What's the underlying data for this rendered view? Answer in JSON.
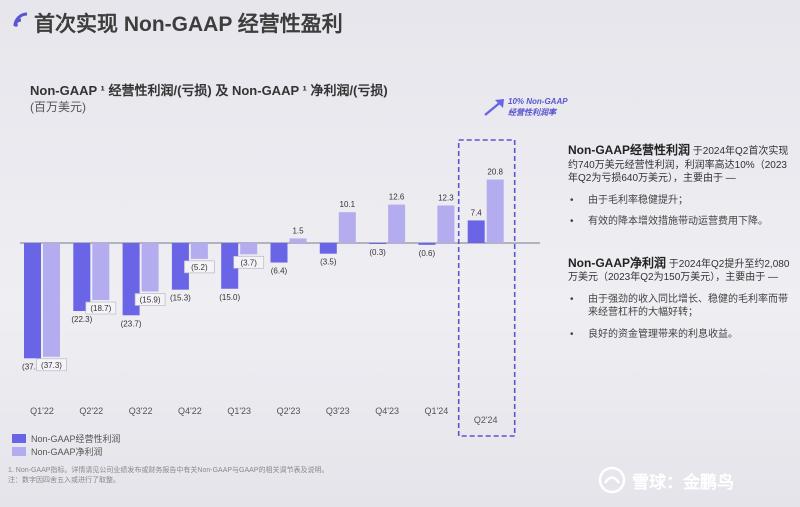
{
  "slide_title": "首次实现 Non-GAAP 经营性盈利",
  "chart_data": {
    "type": "bar",
    "title": "Non-GAAP ¹ 经营性利润/(亏损) 及 Non-GAAP ¹ 净利润/(亏损)",
    "subtitle": "(百万美元)",
    "categories": [
      "Q1'22",
      "Q2'22",
      "Q3'22",
      "Q4'22",
      "Q1'23",
      "Q2'23",
      "Q3'23",
      "Q4'23",
      "Q1'24",
      "Q2'24"
    ],
    "series": [
      {
        "name": "Non-GAAP经营性利润",
        "color": "#6a64e6",
        "values": [
          -37.8,
          -22.3,
          -23.7,
          -15.3,
          -15.0,
          -6.4,
          -3.5,
          -0.3,
          -0.6,
          7.4
        ],
        "labels": [
          "(37.8)",
          "(22.3)",
          "(23.7)",
          "(15.3)",
          "(15.0)",
          "(6.4)",
          "(3.5)",
          "(0.3)",
          "(0.6)",
          "7.4"
        ]
      },
      {
        "name": "Non-GAAP净利润",
        "color": "#b3adf0",
        "values": [
          -37.3,
          -18.7,
          -15.9,
          -5.2,
          -3.7,
          1.5,
          10.1,
          12.6,
          12.3,
          20.8
        ],
        "labels": [
          "(37.3)",
          "(18.7)",
          "(15.9)",
          "(5.2)",
          "(3.7)",
          "1.5",
          "10.1",
          "12.6",
          "12.3",
          "20.8"
        ]
      }
    ],
    "ylim": [
      -40,
      25
    ],
    "grid": false,
    "legend": "bottom-left",
    "highlight_category": "Q2'24",
    "callout": [
      "10% Non-GAAP",
      "经营性利润率"
    ]
  },
  "legend_items": [
    "Non-GAAP经营性利润",
    "Non-GAAP净利润"
  ],
  "footnotes": [
    "1. Non-GAAP指标。详情请见公司业绩发布或财务报告中有关Non-GAAP与GAAP的相关调节表及说明。",
    "注：数字因四舍五入或进行了取整。"
  ],
  "panel": {
    "op_head": "Non-GAAP经营性利润",
    "op_text": " 于2024年Q2首次实现约740万美元经营性利润，利润率高达10%（2023年Q2为亏损640万美元），主要由于 —",
    "op_bullets": [
      "由于毛利率稳健提升；",
      "有效的降本增效措施带动运营费用下降。"
    ],
    "net_head": "Non-GAAP净利润",
    "net_text": " 于2024年Q2提升至约2,080万美元（2023年Q2为150万美元），主要由于 —",
    "net_bullets": [
      "由于强劲的收入同比增长、稳健的毛利率而带来经营杠杆的大幅好转；",
      "良好的资金管理带来的利息收益。"
    ],
    "bullet_symbol": "•"
  },
  "watermark": "雪球：金鹏鸟"
}
